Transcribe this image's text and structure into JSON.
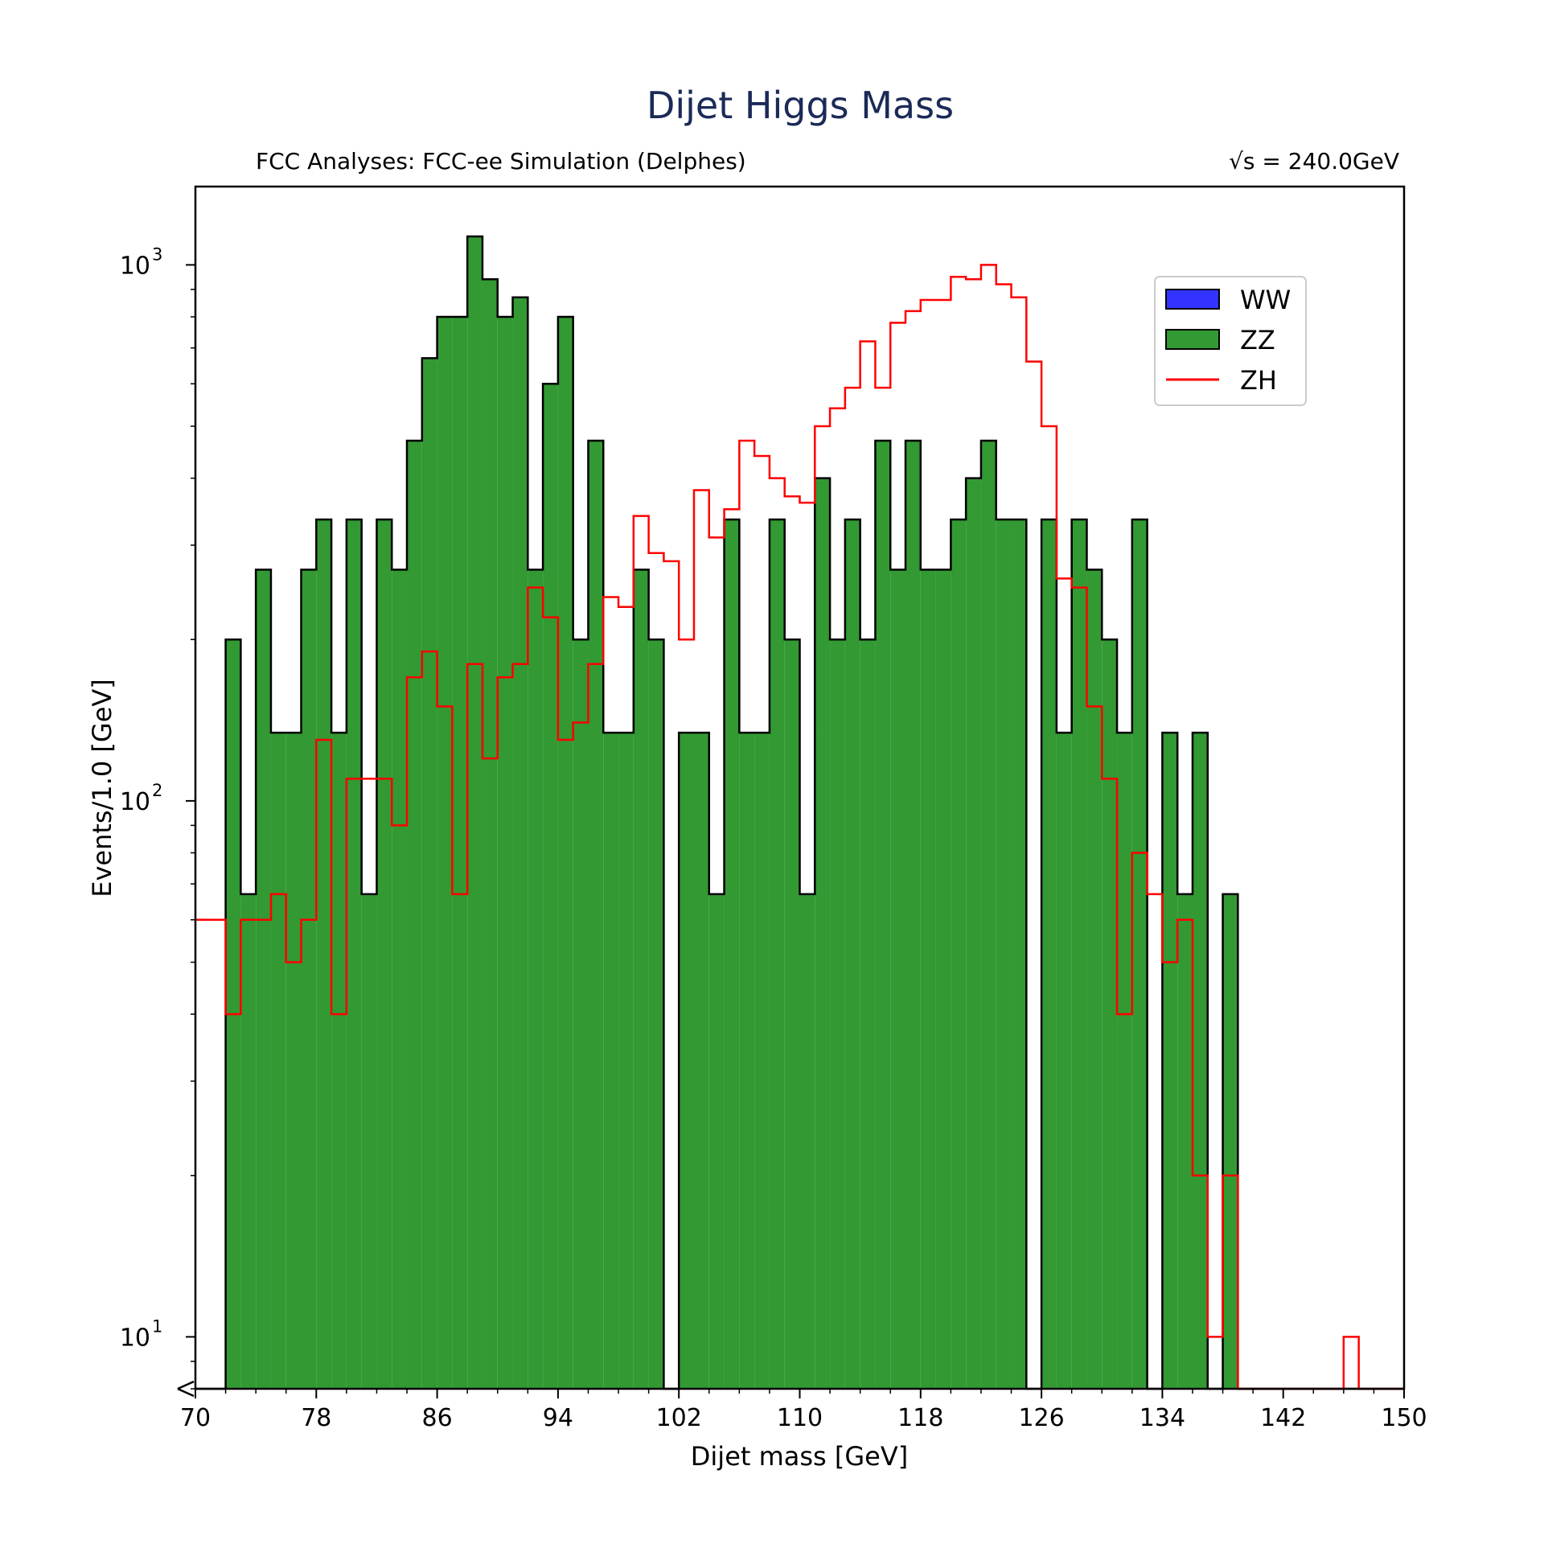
{
  "chart_data": {
    "type": "bar",
    "title": "Dijet Higgs Mass",
    "subtitle_left": "FCC Analyses: FCC-ee Simulation (Delphes)",
    "subtitle_right": "√s = 240.0GeV",
    "xlabel": "Dijet mass [GeV]",
    "ylabel": "Events/1.0 [GeV]",
    "xlim": [
      70,
      150
    ],
    "ylim": [
      8,
      1400
    ],
    "yscale": "log",
    "bin_start": 70,
    "bin_width": 1,
    "xticks": [
      "70",
      "78",
      "86",
      "94",
      "102",
      "110",
      "118",
      "126",
      "134",
      "142",
      "150"
    ],
    "yticks": [
      {
        "value": 10,
        "base": "10",
        "exp": "1"
      },
      {
        "value": 100,
        "base": "10",
        "exp": "2"
      },
      {
        "value": 1000,
        "base": "10",
        "exp": "3"
      }
    ],
    "legend_position": "top-right",
    "series": [
      {
        "name": "WW",
        "style": "filled",
        "color": "#3333ff",
        "edge": "#000000",
        "values": []
      },
      {
        "name": "ZZ",
        "style": "filled",
        "color": "#339933",
        "edge": "#000000",
        "values": [
          0,
          0,
          200,
          67,
          270,
          134,
          134,
          270,
          335,
          134,
          335,
          67,
          335,
          270,
          470,
          670,
          800,
          800,
          1130,
          940,
          800,
          870,
          270,
          600,
          800,
          200,
          470,
          134,
          134,
          270,
          200,
          0,
          134,
          134,
          67,
          335,
          134,
          134,
          335,
          200,
          67,
          400,
          200,
          335,
          200,
          470,
          270,
          470,
          270,
          270,
          335,
          400,
          470,
          335,
          335,
          0,
          335,
          134,
          335,
          270,
          200,
          134,
          335,
          0,
          134,
          67,
          134,
          0,
          67,
          0,
          0,
          0,
          0,
          0,
          0,
          0,
          0,
          0,
          0,
          0
        ]
      },
      {
        "name": "ZH",
        "style": "step",
        "color": "#ff0000",
        "values": [
          60,
          60,
          40,
          60,
          60,
          67,
          50,
          60,
          130,
          40,
          110,
          110,
          110,
          90,
          170,
          190,
          150,
          67,
          180,
          120,
          170,
          180,
          250,
          220,
          130,
          140,
          180,
          240,
          230,
          340,
          290,
          280,
          200,
          380,
          310,
          350,
          470,
          440,
          400,
          370,
          360,
          500,
          540,
          590,
          720,
          590,
          780,
          820,
          860,
          860,
          950,
          940,
          1000,
          920,
          870,
          660,
          500,
          260,
          250,
          150,
          110,
          40,
          80,
          67,
          50,
          60,
          20,
          10,
          20,
          0,
          0,
          0,
          0,
          0,
          0,
          0,
          10,
          0,
          0,
          0
        ]
      }
    ]
  }
}
